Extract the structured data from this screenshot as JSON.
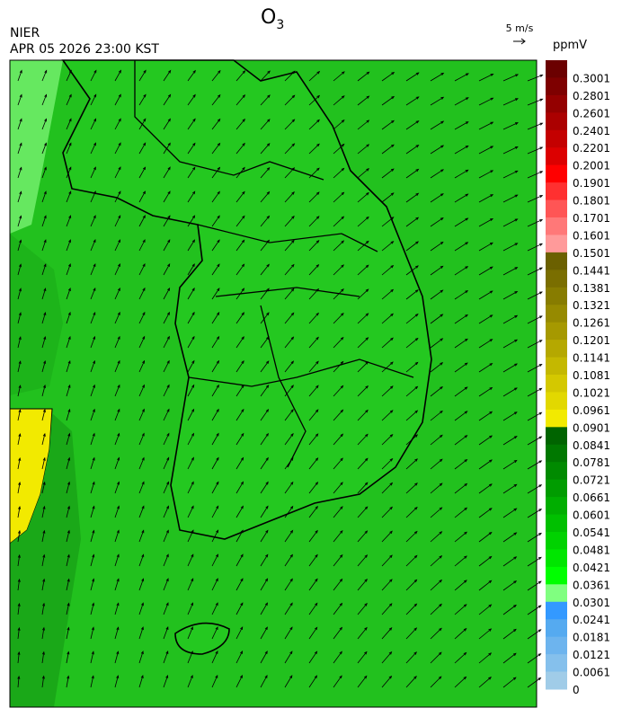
{
  "header": {
    "title": "O",
    "title_subscript": "3",
    "agency": "NIER",
    "timestamp": "APR 05 2026 23:00 KST",
    "wind_scale": "5 m/s"
  },
  "legend": {
    "unit": "ppmV",
    "levels": [
      {
        "label": "0.3001",
        "color": "#6b0000"
      },
      {
        "label": "0.2801",
        "color": "#7e0000"
      },
      {
        "label": "0.2601",
        "color": "#940000"
      },
      {
        "label": "0.2401",
        "color": "#ab0000"
      },
      {
        "label": "0.2201",
        "color": "#c40000"
      },
      {
        "label": "0.2001",
        "color": "#dc0000"
      },
      {
        "label": "0.1901",
        "color": "#ff0000"
      },
      {
        "label": "0.1801",
        "color": "#ff3030"
      },
      {
        "label": "0.1701",
        "color": "#ff5555"
      },
      {
        "label": "0.1601",
        "color": "#ff7878"
      },
      {
        "label": "0.1501",
        "color": "#ff9a9a"
      },
      {
        "label": "0.1441",
        "color": "#6b6000"
      },
      {
        "label": "0.1381",
        "color": "#7a6e00"
      },
      {
        "label": "0.1321",
        "color": "#877c00"
      },
      {
        "label": "0.1261",
        "color": "#968a00"
      },
      {
        "label": "0.1201",
        "color": "#a69900"
      },
      {
        "label": "0.1141",
        "color": "#b5a800"
      },
      {
        "label": "0.1081",
        "color": "#c4b800"
      },
      {
        "label": "0.1021",
        "color": "#d4c800"
      },
      {
        "label": "0.0961",
        "color": "#e2d800"
      },
      {
        "label": "0.0901",
        "color": "#f2ea00"
      },
      {
        "label": "0.0841",
        "color": "#006400"
      },
      {
        "label": "0.0781",
        "color": "#007800"
      },
      {
        "label": "0.0721",
        "color": "#008a00"
      },
      {
        "label": "0.0661",
        "color": "#009c00"
      },
      {
        "label": "0.0601",
        "color": "#00ae00"
      },
      {
        "label": "0.0541",
        "color": "#00c000"
      },
      {
        "label": "0.0481",
        "color": "#00d200"
      },
      {
        "label": "0.0421",
        "color": "#00e600"
      },
      {
        "label": "0.0361",
        "color": "#00ff00"
      },
      {
        "label": "0.0301",
        "color": "#80ff80"
      },
      {
        "label": "0.0241",
        "color": "#3399ff"
      },
      {
        "label": "0.0181",
        "color": "#55aaf0"
      },
      {
        "label": "0.0121",
        "color": "#6db4ee"
      },
      {
        "label": "0.0061",
        "color": "#85c0ec"
      },
      {
        "label": "0",
        "color": "#a0cce8"
      }
    ]
  }
}
